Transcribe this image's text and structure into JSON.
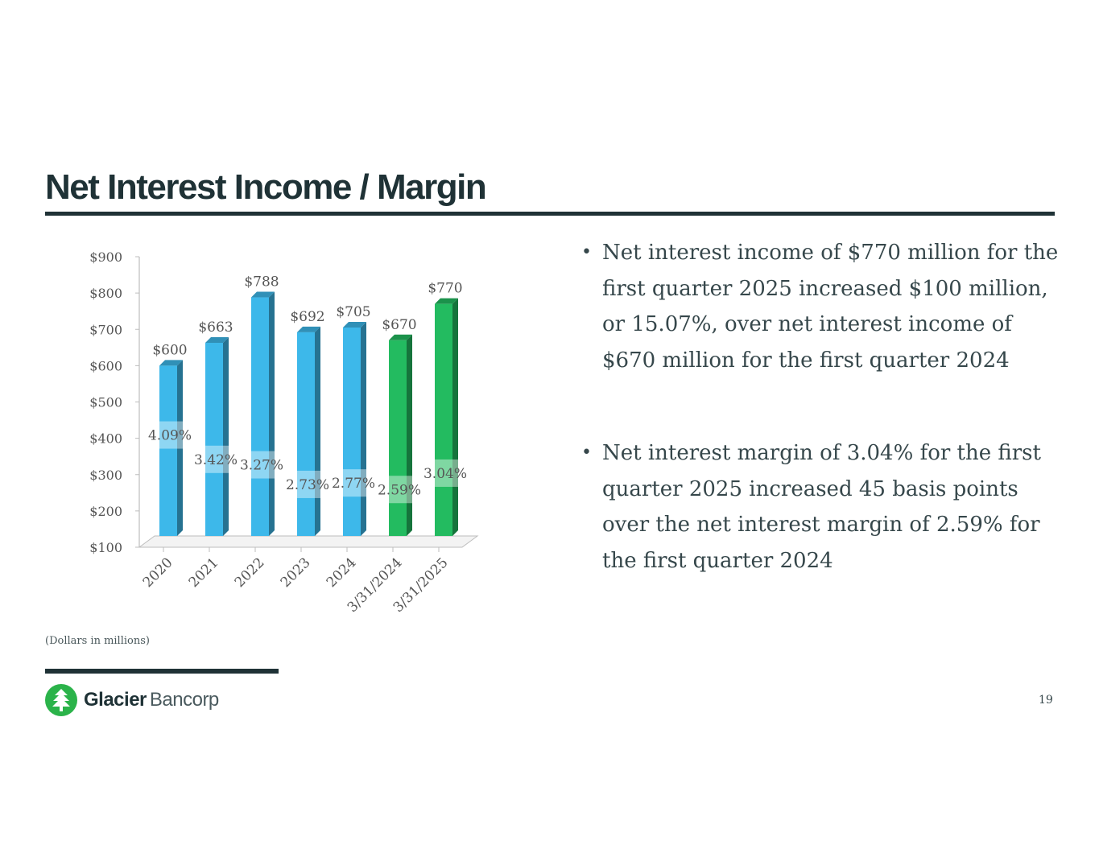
{
  "slide": {
    "title": "Net Interest Income / Margin",
    "footnote": "(Dollars in millions)",
    "page_number": "19"
  },
  "logo": {
    "name_bold": "Glacier",
    "name_light": "Bancorp",
    "color": "#2bb34a"
  },
  "bullets": [
    "Net interest income of $770 million for the first quarter 2025 increased $100 million, or 15.07%, over net interest income of $670 million for the first quarter 2024",
    "Net interest margin of 3.04% for the first quarter 2025 increased 45 basis points over the net interest margin of 2.59% for the first quarter 2024"
  ],
  "chart_data": {
    "type": "bar",
    "categories": [
      "2020",
      "2021",
      "2022",
      "2023",
      "2024",
      "3/31/2024",
      "3/31/2025"
    ],
    "series": [
      {
        "values": [
          600,
          663,
          788,
          692,
          705,
          670,
          770
        ],
        "value_labels": [
          "$600",
          "$663",
          "$788",
          "$692",
          "$705",
          "$670",
          "$770"
        ]
      },
      {
        "values": [
          4.09,
          3.42,
          3.27,
          2.73,
          2.77,
          2.59,
          3.04
        ],
        "value_labels": [
          "4.09%",
          "3.42%",
          "3.27%",
          "2.73%",
          "2.77%",
          "2.59%",
          "3.04%"
        ]
      }
    ],
    "yticks": [
      "$100",
      "$200",
      "$300",
      "$400",
      "$500",
      "$600",
      "$700",
      "$800",
      "$900"
    ],
    "ylim": [
      100,
      900
    ],
    "bar_colors": [
      "#3db8ea",
      "#3db8ea",
      "#3db8ea",
      "#3db8ea",
      "#3db8ea",
      "#23bb60",
      "#23bb60"
    ],
    "grid": false,
    "legend": "none"
  }
}
